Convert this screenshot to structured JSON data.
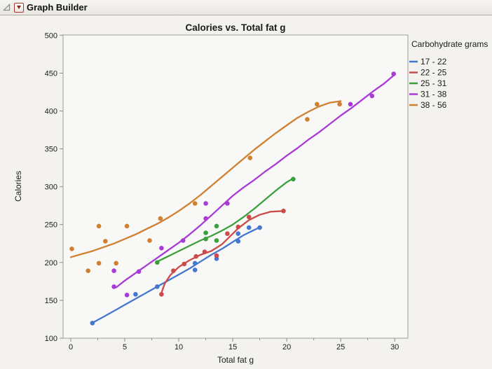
{
  "header": {
    "title": "Graph Builder"
  },
  "colors": {
    "window_bg": "#F1F0ED",
    "chart_bg": "#F3F2EF",
    "plot_bg": "#F8F8F6",
    "frame": "#9D9C99",
    "tick": "#8B8B89",
    "text": "#1A1A1A",
    "header_border": "#AFACA5",
    "red_triangle": "#8E2017"
  },
  "chart_data": {
    "type": "scatter",
    "title": "Calories vs. Total fat g",
    "xlabel": "Total fat g",
    "ylabel": "Calories",
    "xlim": [
      -0.7,
      31.2
    ],
    "ylim": [
      100,
      500
    ],
    "xticks": [
      0,
      5,
      10,
      15,
      20,
      25,
      30
    ],
    "xminorticks": [
      2.5,
      7.5,
      12.5,
      17.5,
      22.5,
      27.5
    ],
    "yticks": [
      100,
      150,
      200,
      250,
      300,
      350,
      400,
      450,
      500
    ],
    "grid": false,
    "legend_title": "Carbohydrate grams",
    "legend_position": "right",
    "series": [
      {
        "name": "17 - 22",
        "color": "#4577D0",
        "points": [
          [
            2,
            120
          ],
          [
            6,
            158
          ],
          [
            8,
            168
          ],
          [
            11.5,
            190
          ],
          [
            11.5,
            199
          ],
          [
            13.5,
            205
          ],
          [
            15.5,
            228
          ],
          [
            15.5,
            238
          ],
          [
            16.5,
            246
          ],
          [
            17.5,
            246
          ]
        ],
        "curve": [
          [
            2.1,
            121
          ],
          [
            3,
            128
          ],
          [
            4,
            136
          ],
          [
            5,
            144
          ],
          [
            6,
            152
          ],
          [
            7,
            160
          ],
          [
            8,
            168
          ],
          [
            9,
            176
          ],
          [
            10,
            184
          ],
          [
            11,
            192
          ],
          [
            12,
            201
          ],
          [
            13,
            210
          ],
          [
            14,
            218
          ],
          [
            15,
            227
          ],
          [
            16,
            236
          ],
          [
            17,
            243
          ],
          [
            17.6,
            247
          ]
        ]
      },
      {
        "name": "22 - 25",
        "color": "#CB4A4A",
        "points": [
          [
            8.4,
            158
          ],
          [
            9.5,
            189
          ],
          [
            10.5,
            198
          ],
          [
            11.6,
            208
          ],
          [
            12.4,
            214
          ],
          [
            13.5,
            209
          ],
          [
            14.5,
            238
          ],
          [
            15.5,
            247
          ],
          [
            16.5,
            260
          ],
          [
            19.7,
            268
          ]
        ],
        "curve": [
          [
            8.4,
            160
          ],
          [
            8.7,
            172
          ],
          [
            9.2,
            183
          ],
          [
            10,
            194
          ],
          [
            11,
            203
          ],
          [
            12,
            210
          ],
          [
            13,
            215
          ],
          [
            14,
            224
          ],
          [
            14.5,
            231
          ],
          [
            15.5,
            245
          ],
          [
            16.5,
            256
          ],
          [
            17.5,
            263
          ],
          [
            18.5,
            267
          ],
          [
            19.7,
            268
          ]
        ]
      },
      {
        "name": "25 - 31",
        "color": "#3BA03B",
        "points": [
          [
            8,
            200
          ],
          [
            12.5,
            231
          ],
          [
            12.5,
            239
          ],
          [
            13.5,
            229
          ],
          [
            13.5,
            248
          ],
          [
            20.6,
            310
          ]
        ],
        "curve": [
          [
            8,
            201
          ],
          [
            9,
            208
          ],
          [
            10,
            215
          ],
          [
            11,
            222
          ],
          [
            12,
            229
          ],
          [
            13,
            235
          ],
          [
            14,
            242
          ],
          [
            15,
            250
          ],
          [
            16,
            260
          ],
          [
            17,
            271
          ],
          [
            18,
            283
          ],
          [
            19,
            295
          ],
          [
            20,
            306
          ],
          [
            20.6,
            311
          ]
        ]
      },
      {
        "name": "31 - 38",
        "color": "#A93BD5",
        "points": [
          [
            4,
            189
          ],
          [
            4,
            168
          ],
          [
            5.2,
            157
          ],
          [
            6.3,
            188
          ],
          [
            8.4,
            219
          ],
          [
            10.4,
            229
          ],
          [
            12.5,
            258
          ],
          [
            12.5,
            278
          ],
          [
            14.5,
            278
          ],
          [
            25.9,
            409
          ],
          [
            27.9,
            420
          ],
          [
            29.9,
            449
          ]
        ],
        "curve": [
          [
            4.2,
            167
          ],
          [
            5,
            176
          ],
          [
            6,
            186
          ],
          [
            7,
            196
          ],
          [
            8,
            206
          ],
          [
            9,
            216
          ],
          [
            10,
            226
          ],
          [
            11,
            237
          ],
          [
            12,
            249
          ],
          [
            13,
            262
          ],
          [
            14,
            275
          ],
          [
            15,
            288
          ],
          [
            16,
            299
          ],
          [
            17,
            309
          ],
          [
            18,
            320
          ],
          [
            19,
            330
          ],
          [
            20,
            341
          ],
          [
            21,
            351
          ],
          [
            22,
            362
          ],
          [
            23,
            372
          ],
          [
            24,
            383
          ],
          [
            25,
            394
          ],
          [
            26,
            404
          ],
          [
            27,
            415
          ],
          [
            28,
            426
          ],
          [
            29,
            436
          ],
          [
            29.9,
            447
          ]
        ]
      },
      {
        "name": "38 - 56",
        "color": "#CF8030",
        "points": [
          [
            0.1,
            218
          ],
          [
            1.6,
            189
          ],
          [
            2.6,
            248
          ],
          [
            2.6,
            199
          ],
          [
            3.2,
            228
          ],
          [
            4.2,
            199
          ],
          [
            5.2,
            248
          ],
          [
            7.3,
            229
          ],
          [
            8.3,
            258
          ],
          [
            11.5,
            278
          ],
          [
            16.6,
            338
          ],
          [
            21.9,
            389
          ],
          [
            22.8,
            409
          ],
          [
            24.9,
            409
          ]
        ],
        "curve": [
          [
            0,
            207
          ],
          [
            1,
            211
          ],
          [
            2,
            215
          ],
          [
            3,
            220
          ],
          [
            4,
            225
          ],
          [
            5,
            231
          ],
          [
            6,
            237
          ],
          [
            7,
            244
          ],
          [
            8,
            251
          ],
          [
            9,
            259
          ],
          [
            10,
            268
          ],
          [
            11,
            278
          ],
          [
            12,
            289
          ],
          [
            13,
            301
          ],
          [
            14,
            313
          ],
          [
            15,
            325
          ],
          [
            16,
            337
          ],
          [
            17,
            349
          ],
          [
            18,
            360
          ],
          [
            19,
            371
          ],
          [
            20,
            381
          ],
          [
            21,
            391
          ],
          [
            22,
            399
          ],
          [
            23,
            406
          ],
          [
            24,
            411
          ],
          [
            25,
            413
          ]
        ]
      }
    ]
  }
}
